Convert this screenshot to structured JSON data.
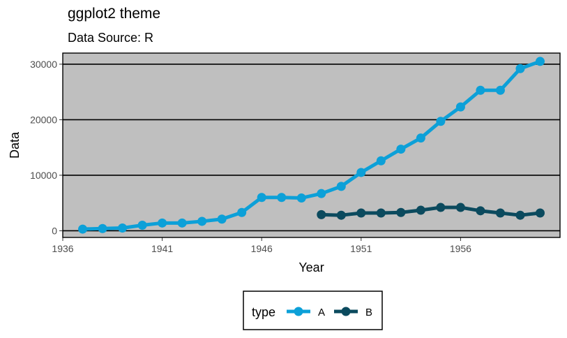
{
  "chart_data": {
    "type": "line",
    "title": "ggplot2 theme",
    "subtitle": "Data Source: R",
    "xlabel": "Year",
    "ylabel": "Data",
    "xlim": [
      1936,
      1961
    ],
    "ylim": [
      -1200,
      32000
    ],
    "x_ticks": [
      "1936",
      "1941",
      "1946",
      "1951",
      "1956"
    ],
    "y_ticks": [
      "0",
      "10000",
      "20000",
      "30000"
    ],
    "grid": "horizontal-major",
    "legend": {
      "title": "type",
      "position": "bottom"
    },
    "series": [
      {
        "name": "A",
        "color": "#0ca0d8",
        "x": [
          1937,
          1938,
          1939,
          1940,
          1941,
          1942,
          1943,
          1944,
          1945,
          1946,
          1947,
          1948,
          1949,
          1950,
          1951,
          1952,
          1953,
          1954,
          1955,
          1956,
          1957,
          1958,
          1959,
          1960
        ],
        "y": [
          300,
          400,
          500,
          1000,
          1400,
          1400,
          1700,
          2100,
          3300,
          6000,
          6000,
          5900,
          6700,
          8000,
          10500,
          12600,
          14700,
          16700,
          19700,
          22300,
          25300,
          25300,
          29200,
          30500
        ]
      },
      {
        "name": "B",
        "color": "#0b4a5e",
        "x": [
          1949,
          1950,
          1951,
          1952,
          1953,
          1954,
          1955,
          1956,
          1957,
          1958,
          1959,
          1960
        ],
        "y": [
          2900,
          2800,
          3200,
          3200,
          3300,
          3700,
          4200,
          4200,
          3600,
          3200,
          2800,
          3200
        ]
      }
    ]
  }
}
